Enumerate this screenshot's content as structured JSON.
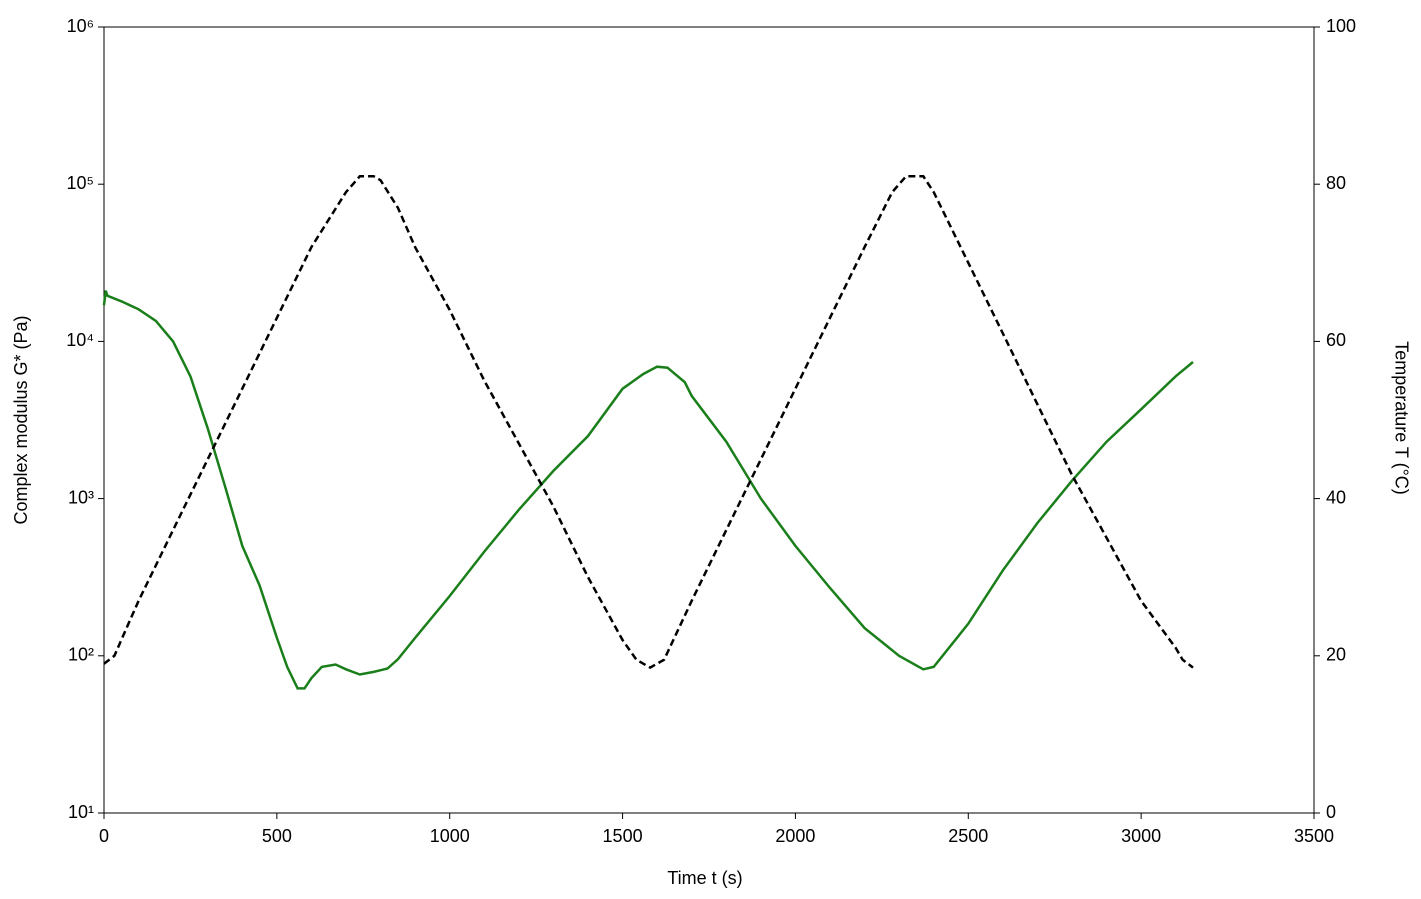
{
  "chart_data": {
    "type": "line",
    "x_label": "Time t (s)",
    "y_label": "Complex modulus G* (Pa)",
    "y2_label": "Temperature T (°C)",
    "y_label_color": "#1a7f1a",
    "xlim": [
      0,
      3500
    ],
    "xticks": [
      0,
      500,
      1000,
      1500,
      2000,
      2500,
      3000,
      3500
    ],
    "ylim": [
      10,
      1000000
    ],
    "y_log": true,
    "yticks": [
      {
        "value": 10,
        "label": "10¹"
      },
      {
        "value": 100,
        "label": "10²"
      },
      {
        "value": 1000,
        "label": "10³"
      },
      {
        "value": 10000,
        "label": "10⁴"
      },
      {
        "value": 100000,
        "label": "10⁵"
      },
      {
        "value": 1000000,
        "label": "10⁶"
      }
    ],
    "y2lim": [
      0,
      100
    ],
    "y2ticks": [
      0,
      20,
      40,
      60,
      80,
      100
    ],
    "series": [
      {
        "color": "#1a7f1a",
        "dashed": false,
        "x": [
          0,
          5,
          10,
          50,
          100,
          150,
          200,
          250,
          300,
          350,
          400,
          450,
          500,
          530,
          560,
          580,
          600,
          630,
          670,
          700,
          740,
          780,
          820,
          850,
          900,
          1000,
          1100,
          1200,
          1300,
          1400,
          1500,
          1560,
          1600,
          1630,
          1680,
          1700,
          1800,
          1900,
          2000,
          2100,
          2200,
          2300,
          2370,
          2400,
          2500,
          2600,
          2700,
          2800,
          2900,
          3000,
          3100,
          3150
        ],
        "values": [
          17000,
          21000,
          19500,
          18000,
          16000,
          13500,
          10000,
          6000,
          2800,
          1200,
          500,
          280,
          130,
          85,
          62,
          62,
          72,
          85,
          88,
          82,
          76,
          79,
          83,
          95,
          130,
          240,
          460,
          850,
          1500,
          2500,
          5000,
          6200,
          6900,
          6800,
          5500,
          4500,
          2300,
          1000,
          500,
          270,
          150,
          100,
          82,
          85,
          160,
          350,
          700,
          1300,
          2300,
          3700,
          6000,
          7400
        ]
      },
      {
        "color": "#000000",
        "dashed": true,
        "axis": "y2",
        "x": [
          0,
          30,
          60,
          100,
          200,
          300,
          400,
          500,
          600,
          700,
          740,
          780,
          800,
          850,
          900,
          1000,
          1100,
          1200,
          1300,
          1400,
          1500,
          1540,
          1580,
          1620,
          1700,
          1800,
          1900,
          2000,
          2100,
          2200,
          2280,
          2320,
          2370,
          2400,
          2500,
          2600,
          2700,
          2800,
          2900,
          3000,
          3100,
          3120,
          3150
        ],
        "values": [
          19,
          20,
          23,
          27,
          36,
          45,
          54,
          63,
          72,
          79,
          81,
          81,
          80.5,
          77,
          72,
          64,
          55,
          47,
          39,
          30,
          22,
          19.5,
          18.5,
          19.5,
          27,
          36,
          45,
          54,
          63,
          72,
          79,
          81,
          81,
          79,
          70,
          61,
          52,
          43,
          35,
          27,
          21,
          19.5,
          18.5
        ]
      }
    ]
  }
}
